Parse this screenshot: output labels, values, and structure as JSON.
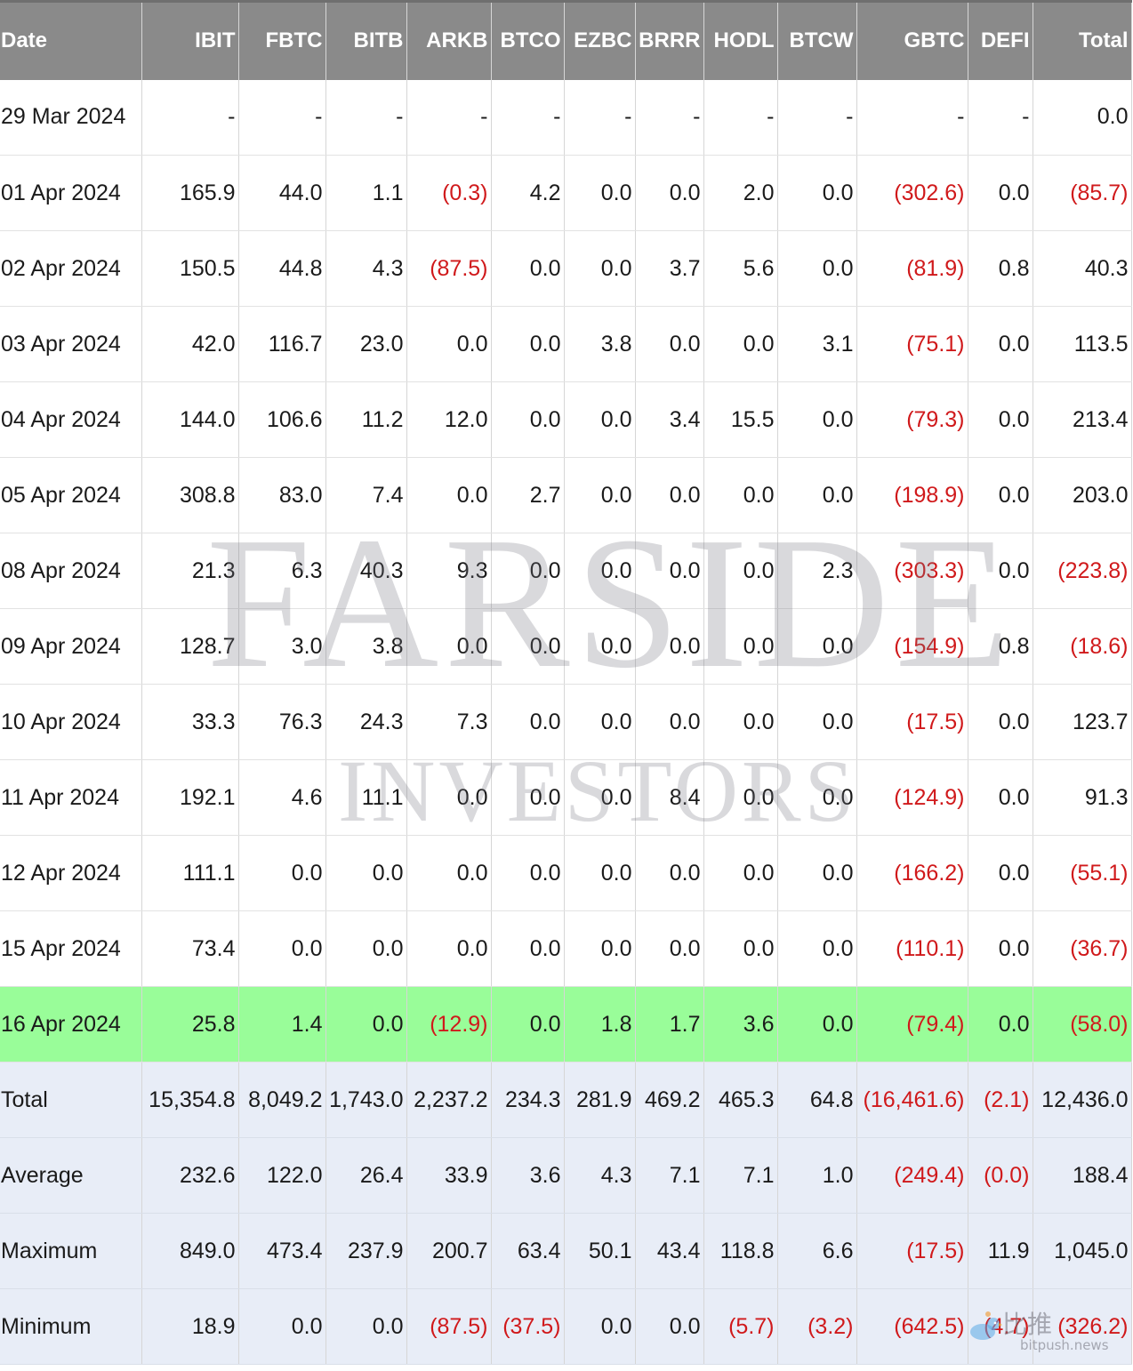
{
  "headers": [
    "Date",
    "IBIT",
    "FBTC",
    "BITB",
    "ARKB",
    "BTCO",
    "EZBC",
    "BRRR",
    "HODL",
    "BTCW",
    "GBTC",
    "DEFI",
    "Total"
  ],
  "rows": [
    {
      "kind": "daily",
      "cells": [
        "29 Mar 2024",
        "-",
        "-",
        "-",
        "-",
        "-",
        "-",
        "-",
        "-",
        "-",
        "-",
        "-",
        "0.0"
      ]
    },
    {
      "kind": "daily",
      "cells": [
        "01 Apr 2024",
        "165.9",
        "44.0",
        "1.1",
        "(0.3)",
        "4.2",
        "0.0",
        "0.0",
        "2.0",
        "0.0",
        "(302.6)",
        "0.0",
        "(85.7)"
      ]
    },
    {
      "kind": "daily",
      "cells": [
        "02 Apr 2024",
        "150.5",
        "44.8",
        "4.3",
        "(87.5)",
        "0.0",
        "0.0",
        "3.7",
        "5.6",
        "0.0",
        "(81.9)",
        "0.8",
        "40.3"
      ]
    },
    {
      "kind": "daily",
      "cells": [
        "03 Apr 2024",
        "42.0",
        "116.7",
        "23.0",
        "0.0",
        "0.0",
        "3.8",
        "0.0",
        "0.0",
        "3.1",
        "(75.1)",
        "0.0",
        "113.5"
      ]
    },
    {
      "kind": "daily",
      "cells": [
        "04 Apr 2024",
        "144.0",
        "106.6",
        "11.2",
        "12.0",
        "0.0",
        "0.0",
        "3.4",
        "15.5",
        "0.0",
        "(79.3)",
        "0.0",
        "213.4"
      ]
    },
    {
      "kind": "daily",
      "cells": [
        "05 Apr 2024",
        "308.8",
        "83.0",
        "7.4",
        "0.0",
        "2.7",
        "0.0",
        "0.0",
        "0.0",
        "0.0",
        "(198.9)",
        "0.0",
        "203.0"
      ]
    },
    {
      "kind": "daily",
      "cells": [
        "08 Apr 2024",
        "21.3",
        "6.3",
        "40.3",
        "9.3",
        "0.0",
        "0.0",
        "0.0",
        "0.0",
        "2.3",
        "(303.3)",
        "0.0",
        "(223.8)"
      ]
    },
    {
      "kind": "daily",
      "cells": [
        "09 Apr 2024",
        "128.7",
        "3.0",
        "3.8",
        "0.0",
        "0.0",
        "0.0",
        "0.0",
        "0.0",
        "0.0",
        "(154.9)",
        "0.8",
        "(18.6)"
      ]
    },
    {
      "kind": "daily",
      "cells": [
        "10 Apr 2024",
        "33.3",
        "76.3",
        "24.3",
        "7.3",
        "0.0",
        "0.0",
        "0.0",
        "0.0",
        "0.0",
        "(17.5)",
        "0.0",
        "123.7"
      ]
    },
    {
      "kind": "daily",
      "cells": [
        "11 Apr 2024",
        "192.1",
        "4.6",
        "11.1",
        "0.0",
        "0.0",
        "0.0",
        "8.4",
        "0.0",
        "0.0",
        "(124.9)",
        "0.0",
        "91.3"
      ]
    },
    {
      "kind": "daily",
      "cells": [
        "12 Apr 2024",
        "111.1",
        "0.0",
        "0.0",
        "0.0",
        "0.0",
        "0.0",
        "0.0",
        "0.0",
        "0.0",
        "(166.2)",
        "0.0",
        "(55.1)"
      ]
    },
    {
      "kind": "daily",
      "cells": [
        "15 Apr 2024",
        "73.4",
        "0.0",
        "0.0",
        "0.0",
        "0.0",
        "0.0",
        "0.0",
        "0.0",
        "0.0",
        "(110.1)",
        "0.0",
        "(36.7)"
      ]
    },
    {
      "kind": "highlight",
      "cells": [
        "16 Apr 2024",
        "25.8",
        "1.4",
        "0.0",
        "(12.9)",
        "0.0",
        "1.8",
        "1.7",
        "3.6",
        "0.0",
        "(79.4)",
        "0.0",
        "(58.0)"
      ]
    },
    {
      "kind": "summary",
      "cells": [
        "Total",
        "15,354.8",
        "8,049.2",
        "1,743.0",
        "2,237.2",
        "234.3",
        "281.9",
        "469.2",
        "465.3",
        "64.8",
        "(16,461.6)",
        "(2.1)",
        "12,436.0"
      ]
    },
    {
      "kind": "summary",
      "cells": [
        "Average",
        "232.6",
        "122.0",
        "26.4",
        "33.9",
        "3.6",
        "4.3",
        "7.1",
        "7.1",
        "1.0",
        "(249.4)",
        "(0.0)",
        "188.4"
      ]
    },
    {
      "kind": "summary",
      "cells": [
        "Maximum",
        "849.0",
        "473.4",
        "237.9",
        "200.7",
        "63.4",
        "50.1",
        "43.4",
        "118.8",
        "6.6",
        "(17.5)",
        "11.9",
        "1,045.0"
      ]
    },
    {
      "kind": "summary",
      "cells": [
        "Minimum",
        "18.9",
        "0.0",
        "0.0",
        "(87.5)",
        "(37.5)",
        "0.0",
        "0.0",
        "(5.7)",
        "(3.2)",
        "(642.5)",
        "(4.7)",
        "(326.2)"
      ]
    }
  ],
  "watermark": {
    "title": "FARSIDE",
    "subtitle": "INVESTORS"
  },
  "site_badge": {
    "name": "比推",
    "url": "bitpush.news"
  },
  "colors": {
    "header_bg": "#8a8a8a",
    "header_text": "#ffffff",
    "negative_text": "#d0191b",
    "highlight_row_bg": "#99fd99",
    "summary_row_bg": "#e8edf7"
  }
}
